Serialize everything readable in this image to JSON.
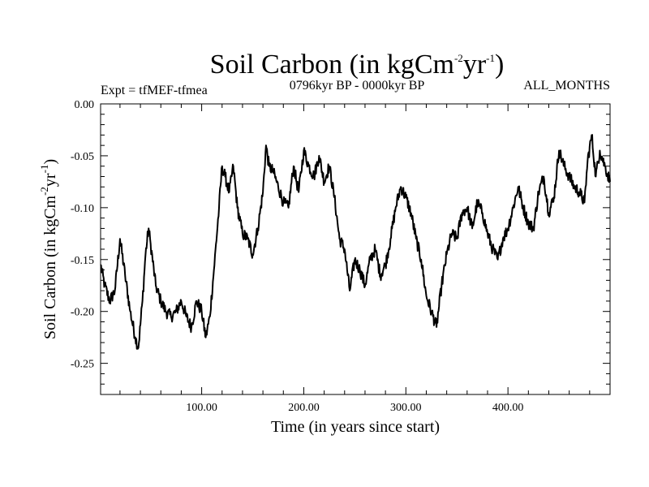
{
  "chart_data": {
    "type": "line",
    "title": "Soil Carbon (in kgCm",
    "title_sup1": "-2",
    "title_mid": "yr",
    "title_sup2": "-1",
    "title_end": ")",
    "left_annotation": "Expt = tfMEF-tfmea",
    "center_annotation": "0796kyr BP - 0000kyr BP",
    "right_annotation": "ALL_MONTHS",
    "xlabel": "Time (in years since start)",
    "ylabel": "Soil Carbon (in kgCm",
    "ylabel_sup1": "-2",
    "ylabel_mid": "yr",
    "ylabel_sup2": "-1",
    "ylabel_end": ")",
    "xlim": [
      1,
      500
    ],
    "ylim": [
      -0.28,
      0.0
    ],
    "xticks": [
      100,
      200,
      300,
      400
    ],
    "xtick_labels": [
      "100.00",
      "200.00",
      "300.00",
      "400.00"
    ],
    "yticks": [
      0.0,
      -0.05,
      -0.1,
      -0.15,
      -0.2,
      -0.25
    ],
    "ytick_labels": [
      "0.00",
      "-0.05",
      "-0.10",
      "-0.15",
      "-0.20",
      "-0.25"
    ],
    "series": [
      {
        "name": "Soil Carbon",
        "color": "#000000",
        "x": [
          1,
          5,
          10,
          15,
          20,
          25,
          30,
          35,
          38,
          42,
          45,
          48,
          50,
          55,
          60,
          65,
          70,
          75,
          80,
          85,
          90,
          95,
          100,
          104,
          108,
          112,
          117,
          120,
          123,
          127,
          131,
          135,
          140,
          145,
          150,
          155,
          160,
          163,
          166,
          170,
          175,
          180,
          185,
          190,
          195,
          200,
          205,
          210,
          215,
          220,
          225,
          230,
          235,
          240,
          245,
          250,
          255,
          260,
          265,
          270,
          275,
          280,
          285,
          290,
          295,
          300,
          305,
          310,
          315,
          320,
          325,
          330,
          335,
          340,
          345,
          350,
          355,
          360,
          365,
          370,
          375,
          380,
          385,
          390,
          395,
          400,
          405,
          410,
          415,
          420,
          425,
          430,
          435,
          440,
          445,
          450,
          455,
          460,
          465,
          470,
          475,
          478,
          482,
          486,
          490,
          495,
          500
        ],
        "values": [
          -0.155,
          -0.175,
          -0.19,
          -0.18,
          -0.13,
          -0.165,
          -0.2,
          -0.225,
          -0.235,
          -0.19,
          -0.145,
          -0.12,
          -0.135,
          -0.175,
          -0.19,
          -0.2,
          -0.205,
          -0.2,
          -0.19,
          -0.205,
          -0.215,
          -0.19,
          -0.2,
          -0.225,
          -0.205,
          -0.16,
          -0.1,
          -0.06,
          -0.07,
          -0.085,
          -0.06,
          -0.1,
          -0.125,
          -0.13,
          -0.145,
          -0.12,
          -0.085,
          -0.04,
          -0.06,
          -0.065,
          -0.08,
          -0.095,
          -0.1,
          -0.06,
          -0.085,
          -0.045,
          -0.06,
          -0.07,
          -0.05,
          -0.075,
          -0.06,
          -0.09,
          -0.13,
          -0.14,
          -0.18,
          -0.15,
          -0.16,
          -0.175,
          -0.15,
          -0.14,
          -0.165,
          -0.155,
          -0.13,
          -0.1,
          -0.08,
          -0.09,
          -0.105,
          -0.13,
          -0.15,
          -0.185,
          -0.2,
          -0.215,
          -0.175,
          -0.145,
          -0.125,
          -0.13,
          -0.105,
          -0.1,
          -0.12,
          -0.095,
          -0.105,
          -0.125,
          -0.14,
          -0.15,
          -0.13,
          -0.12,
          -0.1,
          -0.08,
          -0.1,
          -0.115,
          -0.12,
          -0.085,
          -0.07,
          -0.105,
          -0.09,
          -0.045,
          -0.06,
          -0.07,
          -0.08,
          -0.085,
          -0.095,
          -0.055,
          -0.03,
          -0.07,
          -0.045,
          -0.06,
          -0.075
        ]
      }
    ]
  }
}
